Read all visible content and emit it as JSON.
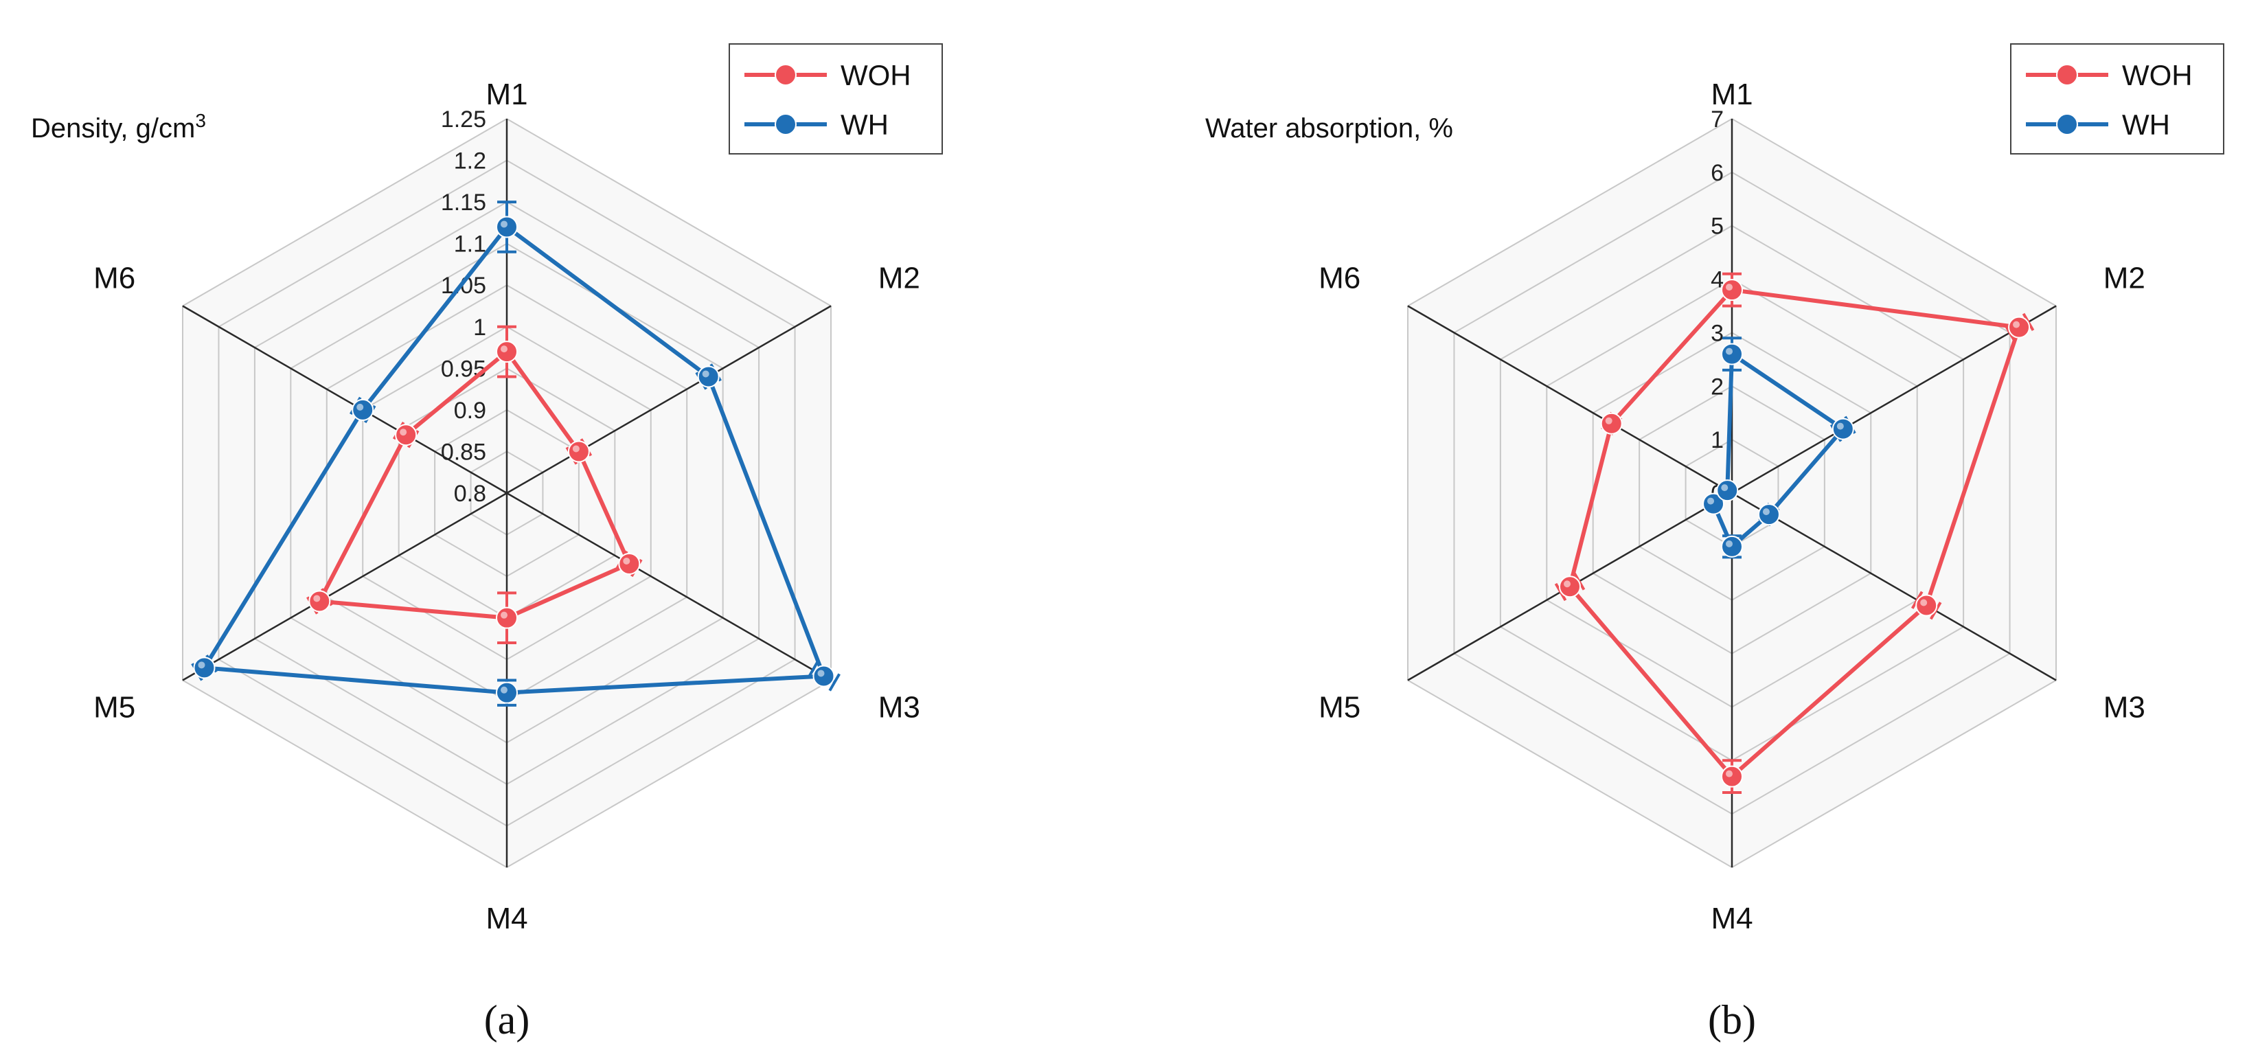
{
  "colors": {
    "woh": "#ee5057",
    "wh": "#1f6fb6",
    "axis": "#2a2a2a",
    "grid": "#c8c8c8",
    "panel_bg": "#f8f8f8"
  },
  "chart_data": [
    {
      "type": "radar",
      "panel_label": "(a)",
      "title": "Density, g/cm",
      "title_superscript": "3",
      "categories": [
        "M1",
        "M2",
        "M3",
        "M4",
        "M5",
        "M6"
      ],
      "rlim": [
        0.8,
        1.25
      ],
      "ticks": [
        "0.8",
        "0.85",
        "0.9",
        "0.95",
        "1",
        "1.05",
        "1.1",
        "1.15",
        "1.2",
        "1.25"
      ],
      "grid": true,
      "legend": "top-right",
      "series": [
        {
          "name": "WOH",
          "color_key": "woh",
          "values": [
            0.97,
            0.9,
            0.97,
            0.95,
            1.06,
            0.94
          ],
          "errors": [
            0.03,
            0.01,
            0.01,
            0.03,
            0.01,
            0.01
          ]
        },
        {
          "name": "WH",
          "color_key": "wh",
          "values": [
            1.12,
            1.08,
            1.24,
            1.04,
            1.22,
            1.0
          ],
          "errors": [
            0.03,
            0.01,
            0.015,
            0.015,
            0.01,
            0.01
          ]
        }
      ]
    },
    {
      "type": "radar",
      "panel_label": "(b)",
      "title": "Water absorption, %",
      "title_superscript": "",
      "categories": [
        "M1",
        "M2",
        "M3",
        "M4",
        "M5",
        "M6"
      ],
      "rlim": [
        0,
        7
      ],
      "ticks": [
        "0",
        "1",
        "2",
        "3",
        "4",
        "5",
        "6",
        "7"
      ],
      "grid": true,
      "legend": "top-right",
      "series": [
        {
          "name": "WOH",
          "color_key": "woh",
          "values": [
            3.8,
            6.2,
            4.2,
            5.3,
            3.5,
            2.6
          ],
          "errors": [
            0.3,
            0.2,
            0.2,
            0.3,
            0.2,
            0.1
          ]
        },
        {
          "name": "WH",
          "color_key": "wh",
          "values": [
            2.6,
            2.4,
            0.8,
            1.0,
            0.4,
            0.1
          ],
          "errors": [
            0.3,
            0.15,
            0.1,
            0.2,
            0.05,
            0.05
          ]
        }
      ]
    }
  ]
}
